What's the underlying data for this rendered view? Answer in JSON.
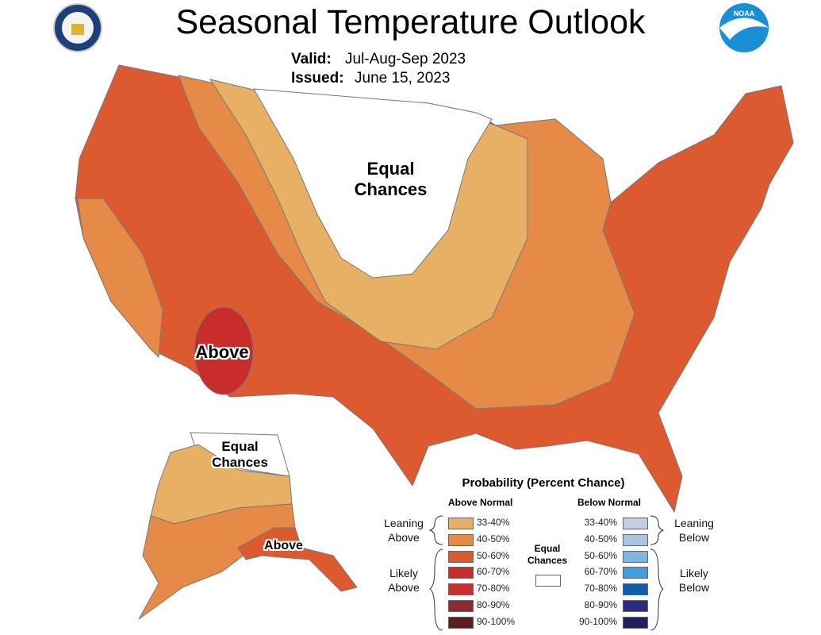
{
  "title": "Seasonal Temperature Outlook",
  "valid": {
    "label": "Valid:",
    "value": "Jul-Aug-Sep 2023"
  },
  "issued": {
    "label": "Issued:",
    "value": "June 15, 2023"
  },
  "logos": {
    "left": "department-of-commerce-seal",
    "right": "noaa-logo"
  },
  "map_labels": {
    "conus_equal": "Equal Chances",
    "conus_above": "Above",
    "ak_equal": "Equal Chances",
    "ak_above": "Above"
  },
  "legend": {
    "title": "Probability (Percent Chance)",
    "above_header": "Above Normal",
    "below_header": "Below Normal",
    "leaning_above": "Leaning Above",
    "likely_above": "Likely Above",
    "leaning_below": "Leaning Below",
    "likely_below": "Likely Below",
    "equal_chances": "Equal Chances",
    "equal_color": "#ffffff",
    "above": [
      {
        "range": "33-40%",
        "color": "#e8b065"
      },
      {
        "range": "40-50%",
        "color": "#e68a48"
      },
      {
        "range": "50-60%",
        "color": "#dd5a31"
      },
      {
        "range": "60-70%",
        "color": "#c82d2b"
      },
      {
        "range": "70-80%",
        "color": "#c9302f"
      },
      {
        "range": "80-90%",
        "color": "#8e2a37"
      },
      {
        "range": "90-100%",
        "color": "#5c1d22"
      }
    ],
    "below": [
      {
        "range": "33-40%",
        "color": "#c3cfe0"
      },
      {
        "range": "40-50%",
        "color": "#a8c4e0"
      },
      {
        "range": "50-60%",
        "color": "#7fb7e4"
      },
      {
        "range": "60-70%",
        "color": "#3f9ee0"
      },
      {
        "range": "70-80%",
        "color": "#0e5fa6"
      },
      {
        "range": "80-90%",
        "color": "#2e2a84"
      },
      {
        "range": "90-100%",
        "color": "#22205c"
      }
    ]
  }
}
